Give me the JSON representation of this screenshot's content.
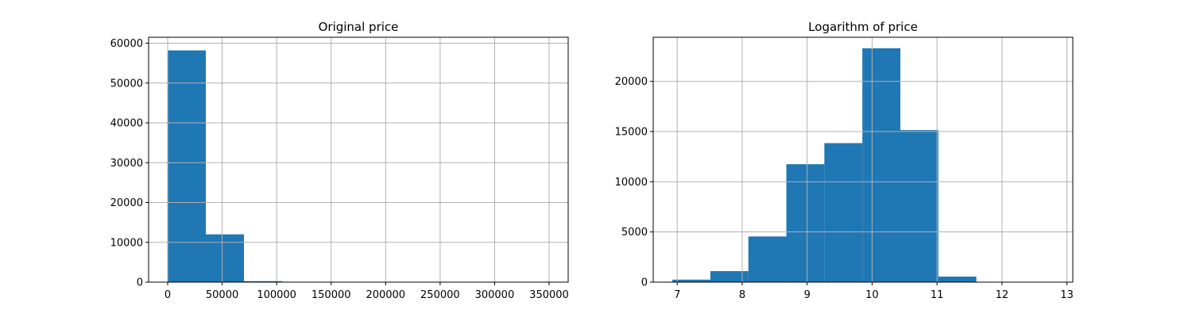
{
  "chart_data": [
    {
      "type": "bar",
      "title": "Original price",
      "xlabel": "",
      "ylabel": "",
      "grid": true,
      "bar_color": "#1f77b4",
      "xlim": [
        -17500,
        367500
      ],
      "ylim": [
        0,
        61500
      ],
      "x_ticks": [
        0,
        50000,
        100000,
        150000,
        200000,
        250000,
        300000,
        350000
      ],
      "x_tick_labels": [
        "0",
        "50000",
        "100000",
        "150000",
        "200000",
        "250000",
        "300000",
        "350000"
      ],
      "y_ticks": [
        0,
        10000,
        20000,
        30000,
        40000,
        50000,
        60000
      ],
      "y_tick_labels": [
        "0",
        "10000",
        "20000",
        "30000",
        "40000",
        "50000",
        "60000"
      ],
      "bins": [
        {
          "x0": 0,
          "x1": 35000,
          "value": 58200
        },
        {
          "x0": 35000,
          "x1": 70000,
          "value": 12000
        },
        {
          "x0": 70000,
          "x1": 105000,
          "value": 250
        },
        {
          "x0": 105000,
          "x1": 140000,
          "value": 20
        },
        {
          "x0": 140000,
          "x1": 175000,
          "value": 5
        },
        {
          "x0": 175000,
          "x1": 210000,
          "value": 3
        },
        {
          "x0": 210000,
          "x1": 245000,
          "value": 2
        },
        {
          "x0": 245000,
          "x1": 280000,
          "value": 1
        },
        {
          "x0": 280000,
          "x1": 315000,
          "value": 1
        },
        {
          "x0": 315000,
          "x1": 350000,
          "value": 1
        }
      ]
    },
    {
      "type": "bar",
      "title": "Logarithm of price",
      "xlabel": "",
      "ylabel": "",
      "grid": true,
      "bar_color": "#1f77b4",
      "xlim": [
        6.63,
        13.09
      ],
      "ylim": [
        0,
        24400
      ],
      "x_ticks": [
        7,
        8,
        9,
        10,
        11,
        12,
        13
      ],
      "x_tick_labels": [
        "7",
        "8",
        "9",
        "10",
        "11",
        "12",
        "13"
      ],
      "y_ticks": [
        0,
        5000,
        10000,
        15000,
        20000
      ],
      "y_tick_labels": [
        "0",
        "5000",
        "10000",
        "15000",
        "20000"
      ],
      "bins": [
        {
          "x0": 6.925,
          "x1": 7.51,
          "value": 250
        },
        {
          "x0": 7.51,
          "x1": 8.095,
          "value": 1100
        },
        {
          "x0": 8.095,
          "x1": 8.68,
          "value": 4550
        },
        {
          "x0": 8.68,
          "x1": 9.265,
          "value": 11750
        },
        {
          "x0": 9.265,
          "x1": 9.85,
          "value": 13850
        },
        {
          "x0": 9.85,
          "x1": 10.435,
          "value": 23300
        },
        {
          "x0": 10.435,
          "x1": 11.02,
          "value": 15150
        },
        {
          "x0": 11.02,
          "x1": 11.605,
          "value": 550
        },
        {
          "x0": 11.605,
          "x1": 12.19,
          "value": 10
        },
        {
          "x0": 12.19,
          "x1": 12.775,
          "value": 5
        }
      ]
    }
  ]
}
